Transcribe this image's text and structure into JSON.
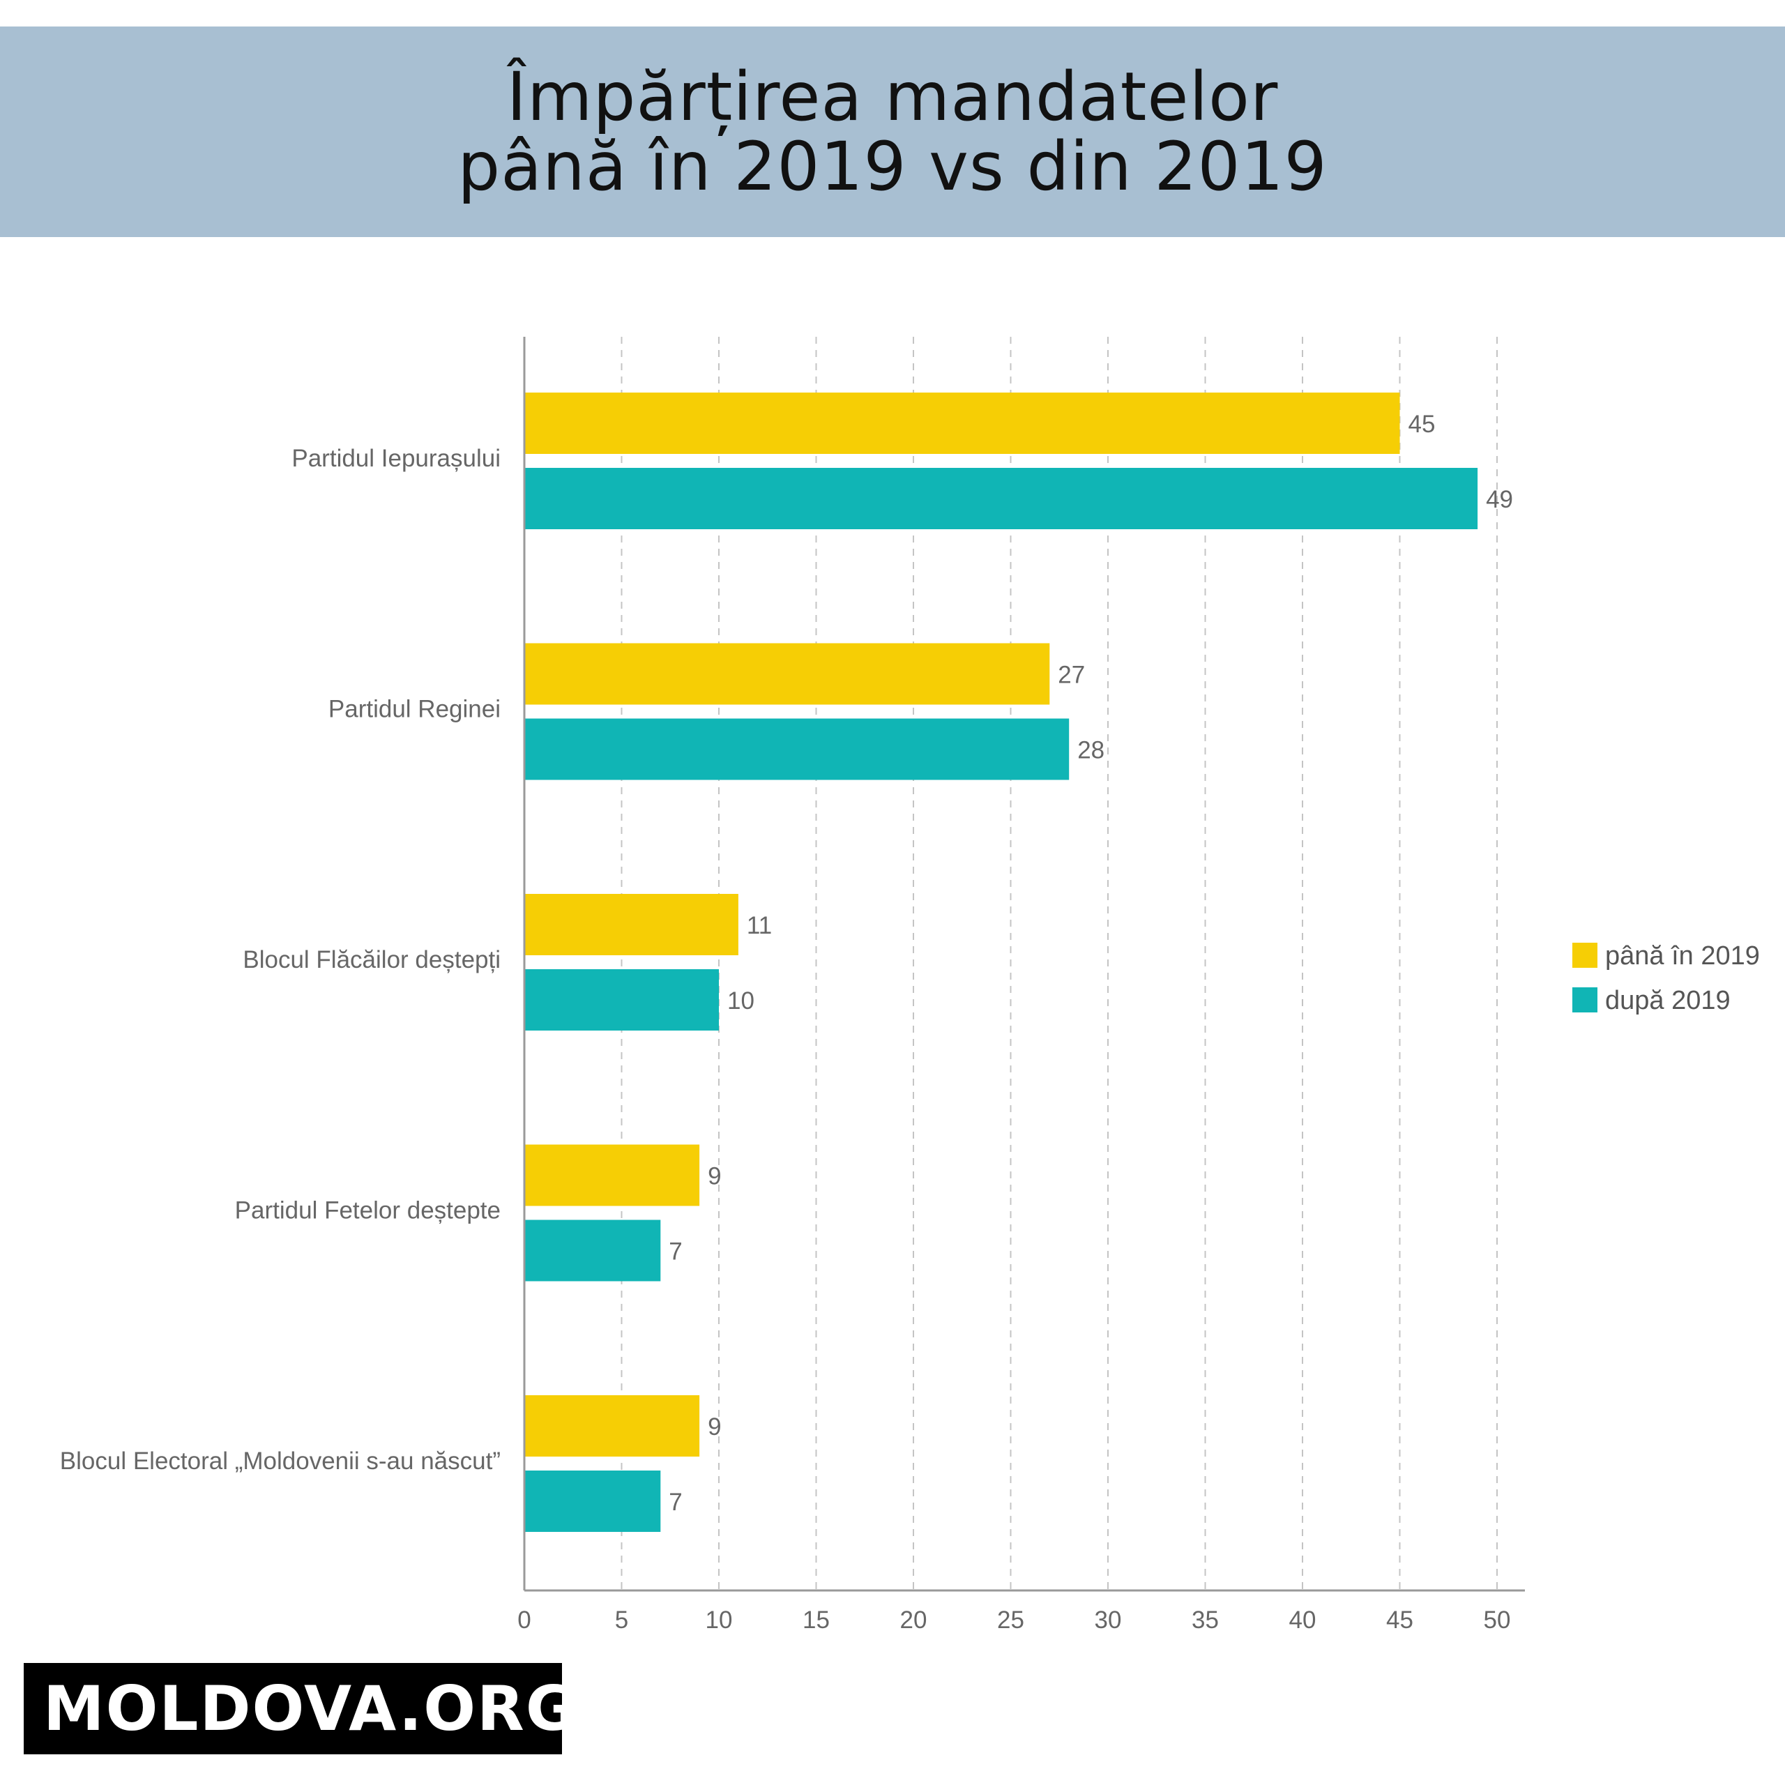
{
  "header": {
    "title_line1": "Împărțirea mandatelor",
    "title_line2": "până în 2019 vs din 2019"
  },
  "chart_data": {
    "type": "bar",
    "orientation": "horizontal",
    "categories": [
      "Partidul Iepurașului",
      "Partidul Reginei",
      "Blocul Flăcăilor deștepți",
      "Partidul Fetelor deștepte",
      "Blocul Electoral „Moldovenii s-au născut”"
    ],
    "series": [
      {
        "name": "până în 2019",
        "color": "#f6ce05",
        "values": [
          45,
          27,
          11,
          9,
          9
        ]
      },
      {
        "name": "după 2019",
        "color": "#10b5b5",
        "values": [
          49,
          28,
          10,
          7,
          7
        ]
      }
    ],
    "xlim": [
      0,
      50
    ],
    "xticks": [
      0,
      5,
      10,
      15,
      20,
      25,
      30,
      35,
      40,
      45,
      50
    ],
    "grid": "vertical dashed",
    "legend_position": "right",
    "data_labels": true
  },
  "brand": {
    "logo_text": "MOLDOVA.ORG",
    "logo_icon": "moldova-map-icon"
  }
}
